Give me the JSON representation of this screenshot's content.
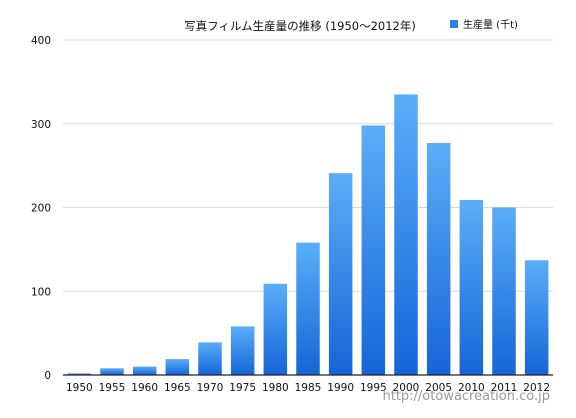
{
  "chart_data": {
    "type": "bar",
    "title": "写真フィルム生産量の推移 (1950〜2012年)",
    "categories": [
      "1950",
      "1955",
      "1960",
      "1965",
      "1970",
      "1975",
      "1980",
      "1985",
      "1990",
      "1995",
      "2000",
      "2005",
      "2010",
      "2011",
      "2012"
    ],
    "series": [
      {
        "name": "生産量 (千t)",
        "values": [
          2,
          8,
          10,
          19,
          39,
          58,
          109,
          158,
          241,
          298,
          335,
          277,
          209,
          200,
          137
        ]
      }
    ],
    "ylim": [
      0,
      400
    ],
    "yticks": [
      0,
      100,
      200,
      300,
      400
    ],
    "grid": true,
    "legend_position": "top-right",
    "colors": {
      "bar_top": "#5aaef8",
      "bar_bottom": "#1565d8",
      "legend_swatch": "#2f7fe6"
    }
  },
  "watermark": "http://otowacreation.co.jp"
}
